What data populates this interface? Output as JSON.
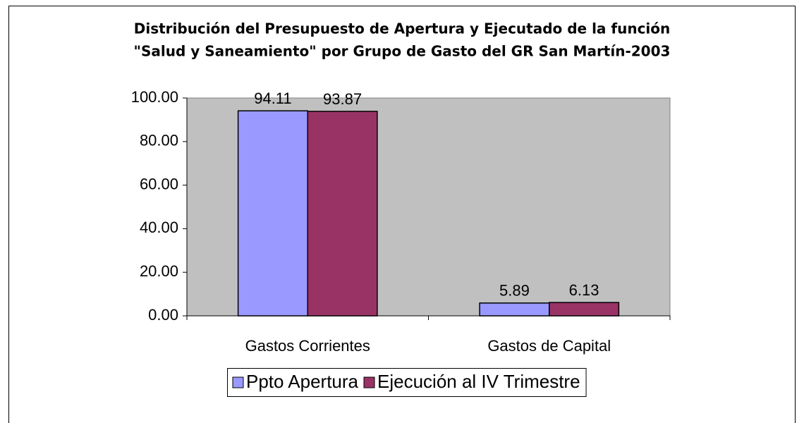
{
  "chart_data": {
    "type": "bar",
    "title": "Distribución del Presupuesto de Apertura y Ejecutado de la función",
    "subtitle": "\"Salud y Saneamiento\" por Grupo de Gasto del GR San Martín-2003",
    "categories": [
      "Gastos Corrientes",
      "Gastos de Capital"
    ],
    "series": [
      {
        "name": "Ppto Apertura",
        "color": "#9999ff",
        "values": [
          94.11,
          5.89
        ]
      },
      {
        "name": "Ejecución al IV Trimestre",
        "color": "#993366",
        "values": [
          93.87,
          6.13
        ]
      }
    ],
    "ylim": [
      0,
      100
    ],
    "yticks": [
      {
        "value": 0,
        "label": "0.00"
      },
      {
        "value": 20,
        "label": "20.00"
      },
      {
        "value": 40,
        "label": "40.00"
      },
      {
        "value": 60,
        "label": "60.00"
      },
      {
        "value": 80,
        "label": "80.00"
      },
      {
        "value": 100,
        "label": "100.00"
      }
    ],
    "legend": "bottom"
  }
}
